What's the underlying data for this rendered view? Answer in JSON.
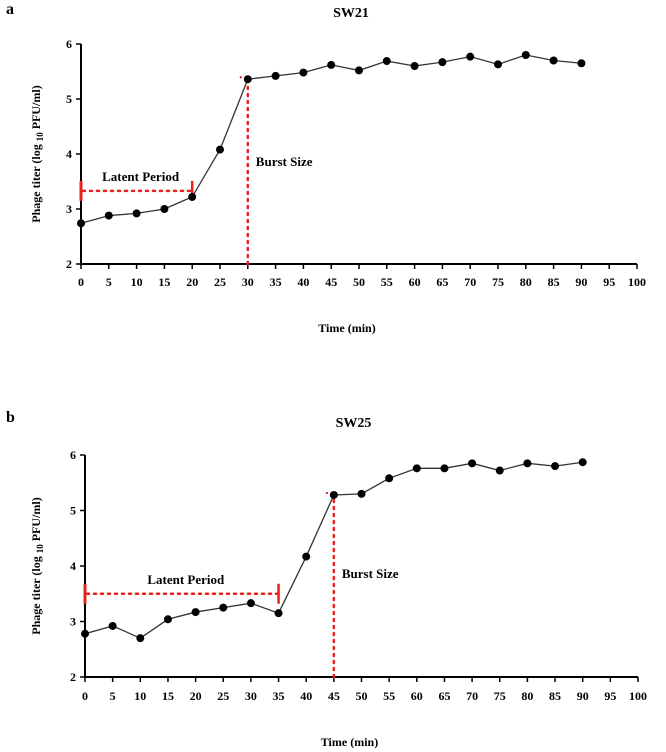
{
  "chart_data": [
    {
      "type": "line",
      "panel_label": "a",
      "title": "SW21",
      "xlabel": "Time (min)",
      "ylabel": "Phage titer (log 10 PFU/ml)",
      "ylabel_parts": {
        "pre": "Phage titer (log ",
        "sub": "10",
        "post": " PFU/ml)"
      },
      "xlim": [
        0,
        100
      ],
      "ylim": [
        2,
        6
      ],
      "x_ticks": [
        0,
        5,
        10,
        15,
        20,
        25,
        30,
        35,
        40,
        45,
        50,
        55,
        60,
        65,
        70,
        75,
        80,
        85,
        90,
        95,
        100
      ],
      "y_ticks": [
        2,
        3,
        4,
        5,
        6
      ],
      "series": [
        {
          "name": "SW21",
          "x": [
            0,
            5,
            10,
            15,
            20,
            25,
            30,
            35,
            40,
            45,
            50,
            55,
            60,
            65,
            70,
            75,
            80,
            85,
            90
          ],
          "y": [
            2.74,
            2.88,
            2.92,
            3.0,
            3.22,
            4.08,
            5.36,
            5.42,
            5.48,
            5.62,
            5.52,
            5.69,
            5.6,
            5.67,
            5.77,
            5.63,
            5.8,
            5.7,
            5.65
          ]
        }
      ],
      "annotations": {
        "latent_label": "Latent Period",
        "latent_x": [
          0,
          20
        ],
        "latent_y": 3.33,
        "burst_label": "Burst Size",
        "burst_x": 30,
        "burst_y": [
          2,
          5.36
        ]
      },
      "colors": {
        "line": "#333333",
        "marker": "#000000",
        "annotation": "#e8211d"
      }
    },
    {
      "type": "line",
      "panel_label": "b",
      "title": "SW25",
      "xlabel": "Time (min)",
      "ylabel": "Phage titer (log 10 PFU/ml)",
      "ylabel_parts": {
        "pre": "Phage titer (log ",
        "sub": "10",
        "post": " PFU/ml)"
      },
      "xlim": [
        0,
        100
      ],
      "ylim": [
        2,
        6
      ],
      "x_ticks": [
        0,
        5,
        10,
        15,
        20,
        25,
        30,
        35,
        40,
        45,
        50,
        55,
        60,
        65,
        70,
        75,
        80,
        85,
        90,
        95,
        100
      ],
      "y_ticks": [
        2,
        3,
        4,
        5,
        6
      ],
      "series": [
        {
          "name": "SW25",
          "x": [
            0,
            5,
            10,
            15,
            20,
            25,
            30,
            35,
            40,
            45,
            50,
            55,
            60,
            65,
            70,
            75,
            80,
            85,
            90
          ],
          "y": [
            2.78,
            2.92,
            2.7,
            3.04,
            3.17,
            3.25,
            3.33,
            3.15,
            4.17,
            5.28,
            5.3,
            5.58,
            5.76,
            5.76,
            5.85,
            5.72,
            5.85,
            5.8,
            5.87
          ]
        }
      ],
      "annotations": {
        "latent_label": "Latent Period",
        "latent_x": [
          0,
          35
        ],
        "latent_y": 3.5,
        "burst_label": "Burst Size",
        "burst_x": 45,
        "burst_y": [
          2,
          5.28
        ]
      },
      "colors": {
        "line": "#333333",
        "marker": "#000000",
        "annotation": "#e8211d"
      }
    }
  ]
}
